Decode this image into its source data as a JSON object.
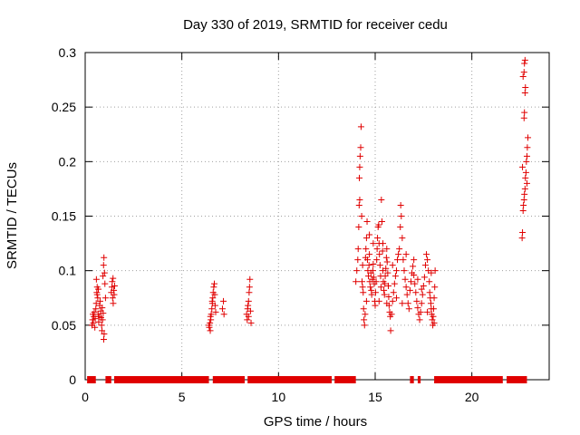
{
  "chart_data": {
    "type": "scatter",
    "title": "Day 330 of 2019, SRMTID for receiver cedu",
    "xlabel": "GPS time / hours",
    "ylabel": "SRMTID / TECUs",
    "xlim": [
      0,
      24
    ],
    "ylim": [
      0,
      0.3
    ],
    "grid": true,
    "x_ticks": [
      0,
      5,
      10,
      15,
      20
    ],
    "x_tick_labels": [
      "0",
      "5",
      "10",
      "15",
      "20"
    ],
    "y_ticks": [
      0,
      0.05,
      0.1,
      0.15,
      0.2,
      0.25,
      0.3
    ],
    "y_tick_labels": [
      "0",
      "0.05",
      "0.1",
      "0.15",
      "0.2",
      "0.25",
      "0.3"
    ],
    "marker": "+",
    "color": "#e00000",
    "series": [
      {
        "name": "SRMTID",
        "points": [
          [
            0.35,
            0.05
          ],
          [
            0.38,
            0.055
          ],
          [
            0.4,
            0.06
          ],
          [
            0.42,
            0.052
          ],
          [
            0.45,
            0.058
          ],
          [
            0.47,
            0.062
          ],
          [
            0.5,
            0.048
          ],
          [
            0.52,
            0.056
          ],
          [
            0.55,
            0.065
          ],
          [
            0.57,
            0.07
          ],
          [
            0.6,
            0.08
          ],
          [
            0.62,
            0.085
          ],
          [
            0.65,
            0.075
          ],
          [
            0.67,
            0.06
          ],
          [
            0.7,
            0.053
          ],
          [
            0.72,
            0.058
          ],
          [
            0.75,
            0.068
          ],
          [
            0.77,
            0.072
          ],
          [
            0.8,
            0.063
          ],
          [
            0.82,
            0.057
          ],
          [
            0.85,
            0.05
          ],
          [
            0.87,
            0.045
          ],
          [
            0.9,
            0.055
          ],
          [
            0.92,
            0.095
          ],
          [
            0.95,
            0.105
          ],
          [
            0.97,
            0.112
          ],
          [
            1.0,
            0.098
          ],
          [
            1.02,
            0.088
          ],
          [
            1.05,
            0.075
          ],
          [
            0.98,
            0.042
          ],
          [
            0.96,
            0.037
          ],
          [
            0.58,
            0.092
          ],
          [
            0.62,
            0.078
          ],
          [
            0.68,
            0.083
          ],
          [
            0.88,
            0.066
          ],
          [
            0.93,
            0.061
          ],
          [
            1.35,
            0.08
          ],
          [
            1.38,
            0.085
          ],
          [
            1.4,
            0.09
          ],
          [
            1.42,
            0.075
          ],
          [
            1.45,
            0.07
          ],
          [
            1.48,
            0.082
          ],
          [
            1.5,
            0.078
          ],
          [
            1.52,
            0.086
          ],
          [
            1.44,
            0.093
          ],
          [
            6.4,
            0.05
          ],
          [
            6.42,
            0.048
          ],
          [
            6.45,
            0.052
          ],
          [
            6.47,
            0.045
          ],
          [
            6.5,
            0.055
          ],
          [
            6.52,
            0.06
          ],
          [
            6.55,
            0.065
          ],
          [
            6.58,
            0.07
          ],
          [
            6.6,
            0.075
          ],
          [
            6.62,
            0.08
          ],
          [
            6.65,
            0.085
          ],
          [
            6.68,
            0.088
          ],
          [
            6.7,
            0.078
          ],
          [
            6.72,
            0.068
          ],
          [
            6.75,
            0.062
          ],
          [
            6.48,
            0.058
          ],
          [
            6.57,
            0.072
          ],
          [
            7.1,
            0.065
          ],
          [
            7.15,
            0.072
          ],
          [
            7.18,
            0.06
          ],
          [
            8.35,
            0.06
          ],
          [
            8.38,
            0.055
          ],
          [
            8.4,
            0.065
          ],
          [
            8.42,
            0.068
          ],
          [
            8.45,
            0.072
          ],
          [
            8.48,
            0.08
          ],
          [
            8.5,
            0.085
          ],
          [
            8.52,
            0.092
          ],
          [
            8.55,
            0.063
          ],
          [
            8.58,
            0.052
          ],
          [
            8.45,
            0.058
          ],
          [
            14.0,
            0.09
          ],
          [
            14.05,
            0.1
          ],
          [
            14.1,
            0.11
          ],
          [
            14.12,
            0.12
          ],
          [
            14.15,
            0.14
          ],
          [
            14.17,
            0.16
          ],
          [
            14.18,
            0.185
          ],
          [
            14.2,
            0.195
          ],
          [
            14.22,
            0.205
          ],
          [
            14.25,
            0.213
          ],
          [
            14.27,
            0.232
          ],
          [
            14.3,
            0.15
          ],
          [
            14.32,
            0.09
          ],
          [
            14.35,
            0.085
          ],
          [
            14.38,
            0.08
          ],
          [
            14.4,
            0.065
          ],
          [
            14.42,
            0.055
          ],
          [
            14.45,
            0.05
          ],
          [
            14.48,
            0.06
          ],
          [
            14.5,
            0.112
          ],
          [
            14.52,
            0.12
          ],
          [
            14.55,
            0.13
          ],
          [
            14.58,
            0.145
          ],
          [
            14.6,
            0.11
          ],
          [
            14.62,
            0.1
          ],
          [
            14.65,
            0.095
          ],
          [
            14.68,
            0.105
          ],
          [
            14.7,
            0.115
          ],
          [
            14.72,
            0.09
          ],
          [
            14.75,
            0.085
          ],
          [
            14.78,
            0.098
          ],
          [
            14.8,
            0.082
          ],
          [
            14.82,
            0.078
          ],
          [
            14.85,
            0.092
          ],
          [
            14.88,
            0.1
          ],
          [
            14.9,
            0.106
          ],
          [
            14.92,
            0.094
          ],
          [
            14.95,
            0.088
          ],
          [
            14.98,
            0.072
          ],
          [
            15.0,
            0.068
          ],
          [
            15.02,
            0.08
          ],
          [
            15.05,
            0.09
          ],
          [
            15.08,
            0.11
          ],
          [
            15.1,
            0.12
          ],
          [
            15.12,
            0.13
          ],
          [
            15.15,
            0.14
          ],
          [
            15.18,
            0.142
          ],
          [
            15.2,
            0.125
          ],
          [
            15.22,
            0.115
          ],
          [
            15.25,
            0.105
          ],
          [
            15.28,
            0.095
          ],
          [
            15.3,
            0.085
          ],
          [
            15.32,
            0.165
          ],
          [
            15.35,
            0.145
          ],
          [
            15.38,
            0.118
          ],
          [
            15.4,
            0.1
          ],
          [
            15.42,
            0.09
          ],
          [
            15.45,
            0.082
          ],
          [
            15.48,
            0.078
          ],
          [
            15.5,
            0.088
          ],
          [
            15.52,
            0.095
          ],
          [
            15.55,
            0.102
          ],
          [
            15.58,
            0.112
          ],
          [
            15.6,
            0.12
          ],
          [
            15.62,
            0.108
          ],
          [
            15.65,
            0.098
          ],
          [
            15.68,
            0.086
          ],
          [
            15.7,
            0.076
          ],
          [
            15.72,
            0.068
          ],
          [
            15.75,
            0.062
          ],
          [
            15.78,
            0.058
          ],
          [
            15.8,
            0.045
          ],
          [
            15.85,
            0.06
          ],
          [
            15.9,
            0.072
          ],
          [
            15.95,
            0.08
          ],
          [
            16.0,
            0.088
          ],
          [
            16.05,
            0.095
          ],
          [
            16.1,
            0.1
          ],
          [
            16.15,
            0.11
          ],
          [
            16.2,
            0.115
          ],
          [
            16.25,
            0.12
          ],
          [
            16.3,
            0.14
          ],
          [
            16.32,
            0.16
          ],
          [
            16.35,
            0.15
          ],
          [
            16.4,
            0.13
          ],
          [
            16.45,
            0.11
          ],
          [
            16.5,
            0.1
          ],
          [
            16.55,
            0.092
          ],
          [
            16.6,
            0.085
          ],
          [
            16.65,
            0.078
          ],
          [
            16.7,
            0.07
          ],
          [
            16.75,
            0.065
          ],
          [
            16.8,
            0.082
          ],
          [
            16.85,
            0.09
          ],
          [
            16.9,
            0.098
          ],
          [
            16.95,
            0.104
          ],
          [
            17.0,
            0.096
          ],
          [
            17.05,
            0.088
          ],
          [
            17.1,
            0.08
          ],
          [
            17.15,
            0.072
          ],
          [
            17.2,
            0.066
          ],
          [
            17.25,
            0.06
          ],
          [
            17.3,
            0.055
          ],
          [
            17.35,
            0.062
          ],
          [
            17.4,
            0.07
          ],
          [
            17.45,
            0.078
          ],
          [
            17.5,
            0.086
          ],
          [
            17.55,
            0.094
          ],
          [
            17.6,
            0.105
          ],
          [
            17.65,
            0.115
          ],
          [
            17.7,
            0.11
          ],
          [
            17.75,
            0.1
          ],
          [
            17.8,
            0.09
          ],
          [
            17.82,
            0.08
          ],
          [
            17.85,
            0.075
          ],
          [
            17.88,
            0.07
          ],
          [
            17.9,
            0.065
          ],
          [
            17.92,
            0.06
          ],
          [
            17.95,
            0.055
          ],
          [
            17.98,
            0.05
          ],
          [
            18.0,
            0.058
          ],
          [
            18.02,
            0.065
          ],
          [
            18.05,
            0.075
          ],
          [
            18.08,
            0.085
          ],
          [
            18.1,
            0.1
          ],
          [
            17.0,
            0.11
          ],
          [
            17.2,
            0.092
          ],
          [
            17.4,
            0.083
          ],
          [
            16.6,
            0.115
          ],
          [
            16.4,
            0.07
          ],
          [
            16.1,
            0.075
          ],
          [
            15.9,
            0.105
          ],
          [
            15.6,
            0.07
          ],
          [
            15.4,
            0.125
          ],
          [
            15.2,
            0.072
          ],
          [
            14.9,
            0.125
          ],
          [
            14.7,
            0.133
          ],
          [
            14.55,
            0.072
          ],
          [
            14.35,
            0.105
          ],
          [
            14.2,
            0.165
          ],
          [
            17.7,
            0.062
          ],
          [
            17.9,
            0.098
          ],
          [
            18.05,
            0.052
          ],
          [
            22.6,
            0.13
          ],
          [
            22.62,
            0.135
          ],
          [
            22.65,
            0.155
          ],
          [
            22.67,
            0.16
          ],
          [
            22.7,
            0.165
          ],
          [
            22.72,
            0.17
          ],
          [
            22.75,
            0.175
          ],
          [
            22.77,
            0.185
          ],
          [
            22.8,
            0.19
          ],
          [
            22.82,
            0.2
          ],
          [
            22.85,
            0.205
          ],
          [
            22.87,
            0.213
          ],
          [
            22.9,
            0.222
          ],
          [
            22.7,
            0.24
          ],
          [
            22.72,
            0.245
          ],
          [
            22.75,
            0.263
          ],
          [
            22.77,
            0.268
          ],
          [
            22.65,
            0.278
          ],
          [
            22.7,
            0.282
          ],
          [
            22.72,
            0.29
          ],
          [
            22.75,
            0.293
          ],
          [
            22.85,
            0.18
          ],
          [
            22.62,
            0.195
          ]
        ]
      }
    ],
    "zero_band_ranges": [
      [
        0.1,
        0.55
      ],
      [
        1.05,
        1.35
      ],
      [
        1.5,
        6.4
      ],
      [
        6.6,
        8.25
      ],
      [
        8.4,
        12.75
      ],
      [
        12.9,
        14.0
      ],
      [
        16.8,
        17.0
      ],
      [
        17.2,
        17.35
      ],
      [
        18.05,
        21.6
      ],
      [
        21.8,
        22.85
      ]
    ]
  }
}
